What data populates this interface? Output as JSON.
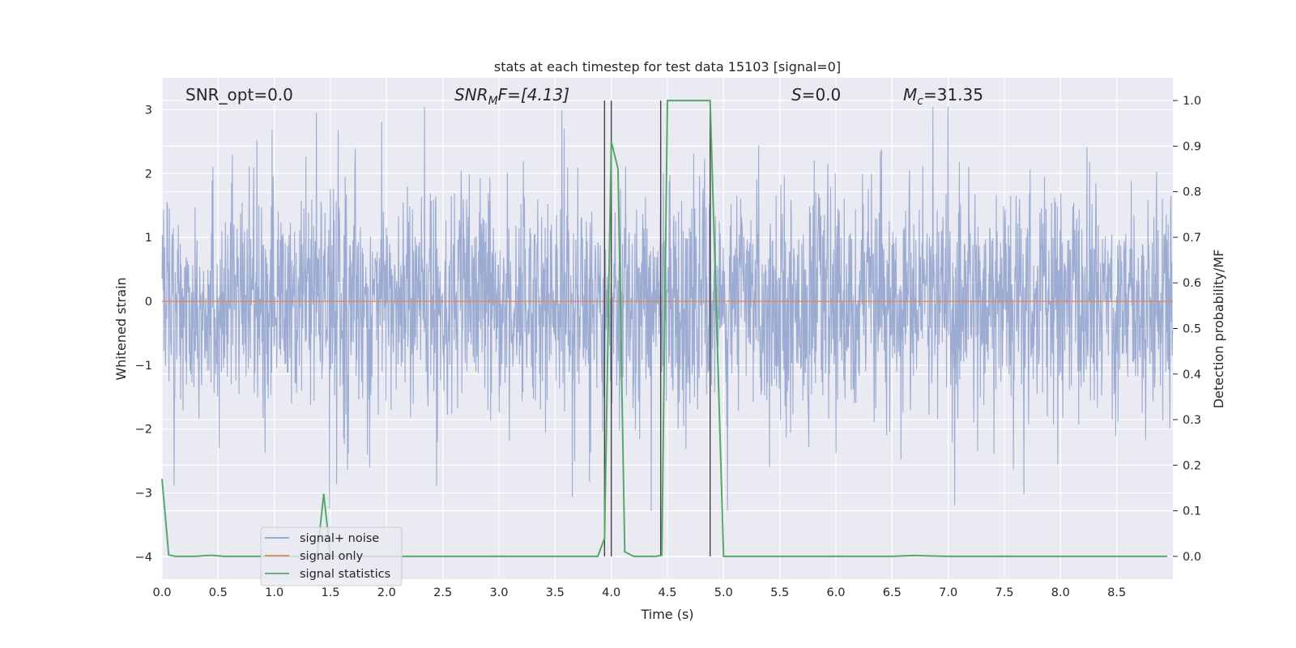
{
  "chart_data": {
    "type": "line",
    "title": "stats at each timestep for test data 15103 [signal=0]",
    "xlabel": "Time (s)",
    "ylabel_left": "Whitened strain",
    "ylabel_right": "Detection probability/MF",
    "xlim": [
      0.0,
      9.0
    ],
    "ylim_left": [
      -4.35,
      3.5
    ],
    "ylim_right": [
      -0.05,
      1.05
    ],
    "xticks": [
      "0.0",
      "0.5",
      "1.0",
      "1.5",
      "2.0",
      "2.5",
      "3.0",
      "3.5",
      "4.0",
      "4.5",
      "5.0",
      "5.5",
      "6.0",
      "6.5",
      "7.0",
      "7.5",
      "8.0",
      "8.5"
    ],
    "yticks_left": [
      "3",
      "2",
      "1",
      "0",
      "−1",
      "−2",
      "−3",
      "−4"
    ],
    "yticks_right": [
      "1.0",
      "0.9",
      "0.8",
      "0.7",
      "0.6",
      "0.5",
      "0.4",
      "0.3",
      "0.2",
      "0.1",
      "0.0"
    ],
    "annotations": {
      "snr_opt": "SNR_opt=0.0",
      "snr_mf_main": "SNR",
      "snr_mf_sub": "M",
      "snr_mf_tail": "F=[4.13]",
      "s_main": "S",
      "s_tail": "=0.0",
      "mc_main": "M",
      "mc_sub": "c",
      "mc_tail": "=31.35"
    },
    "legend": {
      "position": "lower-left",
      "entries": [
        "signal+ noise",
        "signal only",
        "signal statistics"
      ]
    },
    "colors": {
      "noise": "#8da0cb",
      "signal_only": "#dd8452",
      "statistics": "#55a868",
      "vlines": "#444444",
      "background": "#eaeaf2",
      "grid": "#ffffff"
    },
    "series": [
      {
        "name": "signal+ noise",
        "axis": "left",
        "style": "dense noise, roughly within -2 to 2 with peaks up to about 3 and dips to about -3.5"
      },
      {
        "name": "signal only",
        "axis": "left",
        "x": [
          0.0,
          9.0
        ],
        "y": [
          0.0,
          0.0
        ]
      },
      {
        "name": "signal statistics",
        "axis": "right",
        "x": [
          0.0,
          0.06,
          0.12,
          0.2,
          0.3,
          0.4,
          0.45,
          0.5,
          0.55,
          0.6,
          0.8,
          1.0,
          1.2,
          1.38,
          1.44,
          1.5,
          1.6,
          2.0,
          2.5,
          3.0,
          3.5,
          3.88,
          3.94,
          4.0,
          4.06,
          4.12,
          4.2,
          4.3,
          4.4,
          4.45,
          4.5,
          4.6,
          4.8,
          4.88,
          4.94,
          5.0,
          5.1,
          5.5,
          6.0,
          6.5,
          6.7,
          6.8,
          7.0,
          7.5,
          8.0,
          8.5,
          8.95
        ],
        "y": [
          0.17,
          0.003,
          0.0,
          0.0,
          0.0,
          0.002,
          0.002,
          0.001,
          0.0,
          0.0,
          0.0,
          0.0,
          0.0,
          0.0,
          0.137,
          0.0,
          0.0,
          0.0,
          0.0,
          0.0,
          0.0,
          0.0,
          0.04,
          0.91,
          0.85,
          0.01,
          0.0,
          0.0,
          0.0,
          0.003,
          1.0,
          1.0,
          1.0,
          1.0,
          0.5,
          0.0,
          0.0,
          0.0,
          0.0,
          0.0,
          0.002,
          0.001,
          0.0,
          0.0,
          0.0,
          0.0,
          0.0
        ]
      }
    ],
    "vertical_lines_x": [
      3.94,
      4.0,
      4.44,
      4.88
    ]
  }
}
